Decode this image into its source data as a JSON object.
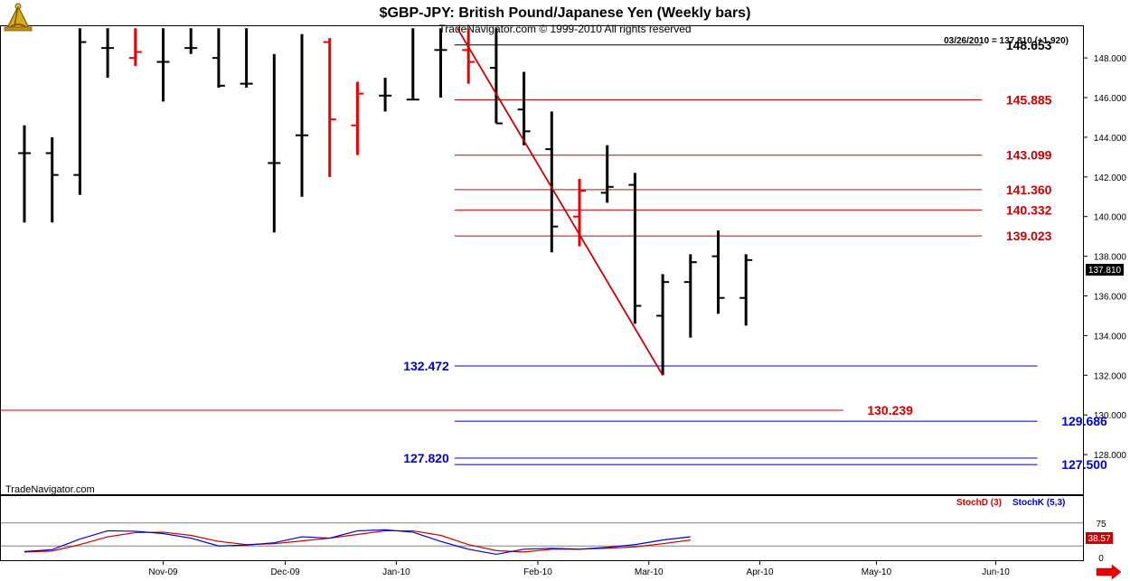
{
  "chart_data": {
    "type": "bar",
    "subtype": "ohlc",
    "title": "$GBP-JPY:  British Pound/Japanese Yen  (Weekly bars)",
    "subtitle": "TradeNavigator.com © 1999-2010 All rights reserved",
    "readout": "03/26/2010 = 137.810 (+1.920)",
    "watermark": "TradeNavigator.com",
    "last_price_label": "137.810",
    "ylim": [
      126.0,
      149.6
    ],
    "yticks": [
      128,
      130,
      132,
      134,
      136,
      138,
      140,
      142,
      144,
      146,
      148
    ],
    "ytick_labels": [
      "128.000",
      "130.000",
      "132.000",
      "134.000",
      "136.000",
      "138.000",
      "140.000",
      "142.000",
      "144.000",
      "146.000",
      "148.000"
    ],
    "x_months": [
      {
        "label": "Nov-09",
        "week": 5
      },
      {
        "label": "Dec-09",
        "week": 9.4
      },
      {
        "label": "Jan-10",
        "week": 13.4
      },
      {
        "label": "Feb-10",
        "week": 18.5
      },
      {
        "label": "Mar-10",
        "week": 22.5
      },
      {
        "label": "Apr-10",
        "week": 26.5
      },
      {
        "label": "May-10",
        "week": 30.7
      },
      {
        "label": "Jun-10",
        "week": 35.0
      }
    ],
    "bars": [
      {
        "w": 0,
        "o": 143.2,
        "h": 144.6,
        "l": 139.7,
        "c": 143.2,
        "col": "black"
      },
      {
        "w": 1,
        "o": 143.2,
        "h": 144.0,
        "l": 139.7,
        "c": 142.1,
        "col": "black"
      },
      {
        "w": 2,
        "o": 142.1,
        "h": 149.5,
        "l": 141.1,
        "c": 148.8,
        "col": "black"
      },
      {
        "w": 3,
        "o": 148.5,
        "h": 149.5,
        "l": 147.0,
        "c": 148.5,
        "col": "black"
      },
      {
        "w": 4,
        "o": 148.0,
        "h": 149.5,
        "l": 147.6,
        "c": 148.3,
        "col": "red"
      },
      {
        "w": 5,
        "o": 147.8,
        "h": 149.5,
        "l": 145.8,
        "c": 147.8,
        "col": "black"
      },
      {
        "w": 6,
        "o": 148.5,
        "h": 149.5,
        "l": 148.2,
        "c": 148.5,
        "col": "black"
      },
      {
        "w": 7,
        "o": 148.0,
        "h": 149.5,
        "l": 146.5,
        "c": 146.6,
        "col": "black"
      },
      {
        "w": 8,
        "o": 146.7,
        "h": 149.5,
        "l": 146.5,
        "c": 146.7,
        "col": "black"
      },
      {
        "w": 9,
        "o": 142.7,
        "h": 148.2,
        "l": 139.2,
        "c": 142.7,
        "col": "black"
      },
      {
        "w": 10,
        "o": 144.1,
        "h": 149.2,
        "l": 141.0,
        "c": 144.1,
        "col": "black"
      },
      {
        "w": 11,
        "o": 148.8,
        "h": 149.0,
        "l": 142.0,
        "c": 144.9,
        "col": "red"
      },
      {
        "w": 12,
        "o": 144.6,
        "h": 146.8,
        "l": 143.1,
        "c": 146.2,
        "col": "red"
      },
      {
        "w": 13,
        "o": 146.1,
        "h": 147.0,
        "l": 145.3,
        "c": 146.1,
        "col": "black"
      },
      {
        "w": 14,
        "o": 145.9,
        "h": 149.5,
        "l": 145.9,
        "c": 145.9,
        "col": "black"
      },
      {
        "w": 15,
        "o": 148.4,
        "h": 149.5,
        "l": 146.0,
        "c": 148.4,
        "col": "black"
      },
      {
        "w": 16,
        "o": 148.4,
        "h": 149.5,
        "l": 146.7,
        "c": 147.8,
        "col": "red"
      },
      {
        "w": 17,
        "o": 147.5,
        "h": 149.5,
        "l": 144.7,
        "c": 144.7,
        "col": "black"
      },
      {
        "w": 18,
        "o": 145.4,
        "h": 147.3,
        "l": 143.6,
        "c": 144.3,
        "col": "black"
      },
      {
        "w": 19,
        "o": 143.4,
        "h": 145.3,
        "l": 138.2,
        "c": 139.5,
        "col": "black"
      },
      {
        "w": 20,
        "o": 140.0,
        "h": 141.9,
        "l": 138.5,
        "c": 141.3,
        "col": "red"
      },
      {
        "w": 21,
        "o": 141.2,
        "h": 143.6,
        "l": 140.7,
        "c": 141.5,
        "col": "black"
      },
      {
        "w": 22,
        "o": 141.6,
        "h": 142.2,
        "l": 134.6,
        "c": 135.5,
        "col": "black"
      },
      {
        "w": 23,
        "o": 135.0,
        "h": 137.1,
        "l": 132.0,
        "c": 136.7,
        "col": "black"
      },
      {
        "w": 24,
        "o": 136.7,
        "h": 138.1,
        "l": 133.9,
        "c": 137.7,
        "col": "black"
      },
      {
        "w": 25,
        "o": 138.0,
        "h": 139.3,
        "l": 135.1,
        "c": 135.9,
        "col": "black"
      },
      {
        "w": 26,
        "o": 135.9,
        "h": 138.1,
        "l": 134.5,
        "c": 137.81,
        "col": "black"
      }
    ],
    "trendline": {
      "from": {
        "w": 15.6,
        "v": 149.5
      },
      "to": {
        "w": 23,
        "v": 132.0
      },
      "color": "#cc0000"
    },
    "levels": [
      {
        "value": 148.653,
        "label": "148.653",
        "color": "#000000",
        "from_w": 15.5,
        "to_w": 34.5,
        "label_side": "right"
      },
      {
        "value": 145.885,
        "label": "145.885",
        "color": "#cc0000",
        "from_w": 15.5,
        "to_w": 34.5,
        "label_side": "right"
      },
      {
        "value": 143.099,
        "label": "143.099",
        "color": "#cc0000",
        "from_w": 15.5,
        "to_w": 34.5,
        "label_side": "right"
      },
      {
        "value": 141.36,
        "label": "141.360",
        "color": "#cc0000",
        "from_w": 15.5,
        "to_w": 34.5,
        "label_side": "right"
      },
      {
        "value": 140.332,
        "label": "140.332",
        "color": "#cc0000",
        "from_w": 15.5,
        "to_w": 34.5,
        "label_side": "right"
      },
      {
        "value": 139.023,
        "label": "139.023",
        "color": "#cc0000",
        "from_w": 15.5,
        "to_w": 34.5,
        "label_side": "right"
      },
      {
        "value": 132.472,
        "label": "132.472",
        "color": "#0000cc",
        "from_w": 15.5,
        "to_w": 36.5,
        "label_side": "left"
      },
      {
        "value": 130.239,
        "label": "130.239",
        "color": "#cc0000",
        "from_w": -1,
        "to_w": 29.5,
        "label_side": "right"
      },
      {
        "value": 129.686,
        "label": "129.686",
        "color": "#0000cc",
        "from_w": 15.5,
        "to_w": 36.5,
        "label_side": "right"
      },
      {
        "value": 127.82,
        "label": "127.820",
        "color": "#0000cc",
        "from_w": 15.5,
        "to_w": 36.5,
        "label_side": "left"
      },
      {
        "value": 127.5,
        "label": "127.500",
        "color": "#0000cc",
        "from_w": 15.5,
        "to_w": 36.5,
        "label_side": "right"
      }
    ],
    "stochastic": {
      "label_d": "StochD (3)",
      "label_k": "StochK (5,3)",
      "ylim": [
        0,
        100
      ],
      "levels": [
        75,
        25
      ],
      "ytick_labels": [
        {
          "value": 75,
          "label": "75"
        },
        {
          "value": 0,
          "label": "0"
        }
      ],
      "current_label": "38.57",
      "k": [
        13,
        17,
        40,
        58,
        57,
        52,
        42,
        25,
        27,
        32,
        45,
        42,
        58,
        60,
        55,
        35,
        18,
        7,
        18,
        20,
        18,
        22,
        28,
        38,
        45
      ],
      "d": [
        12,
        14,
        28,
        45,
        54,
        55,
        48,
        35,
        28,
        30,
        36,
        42,
        50,
        58,
        58,
        48,
        28,
        15,
        12,
        18,
        18,
        20,
        23,
        30,
        38
      ]
    }
  },
  "colors": {
    "up_bar": "#000000",
    "down_bar": "#ee0000",
    "grid": "#808080",
    "stoch_d": "#cc0000",
    "stoch_k": "#0000cc",
    "price_box": "#000000",
    "stoch_box": "#cc0000"
  }
}
